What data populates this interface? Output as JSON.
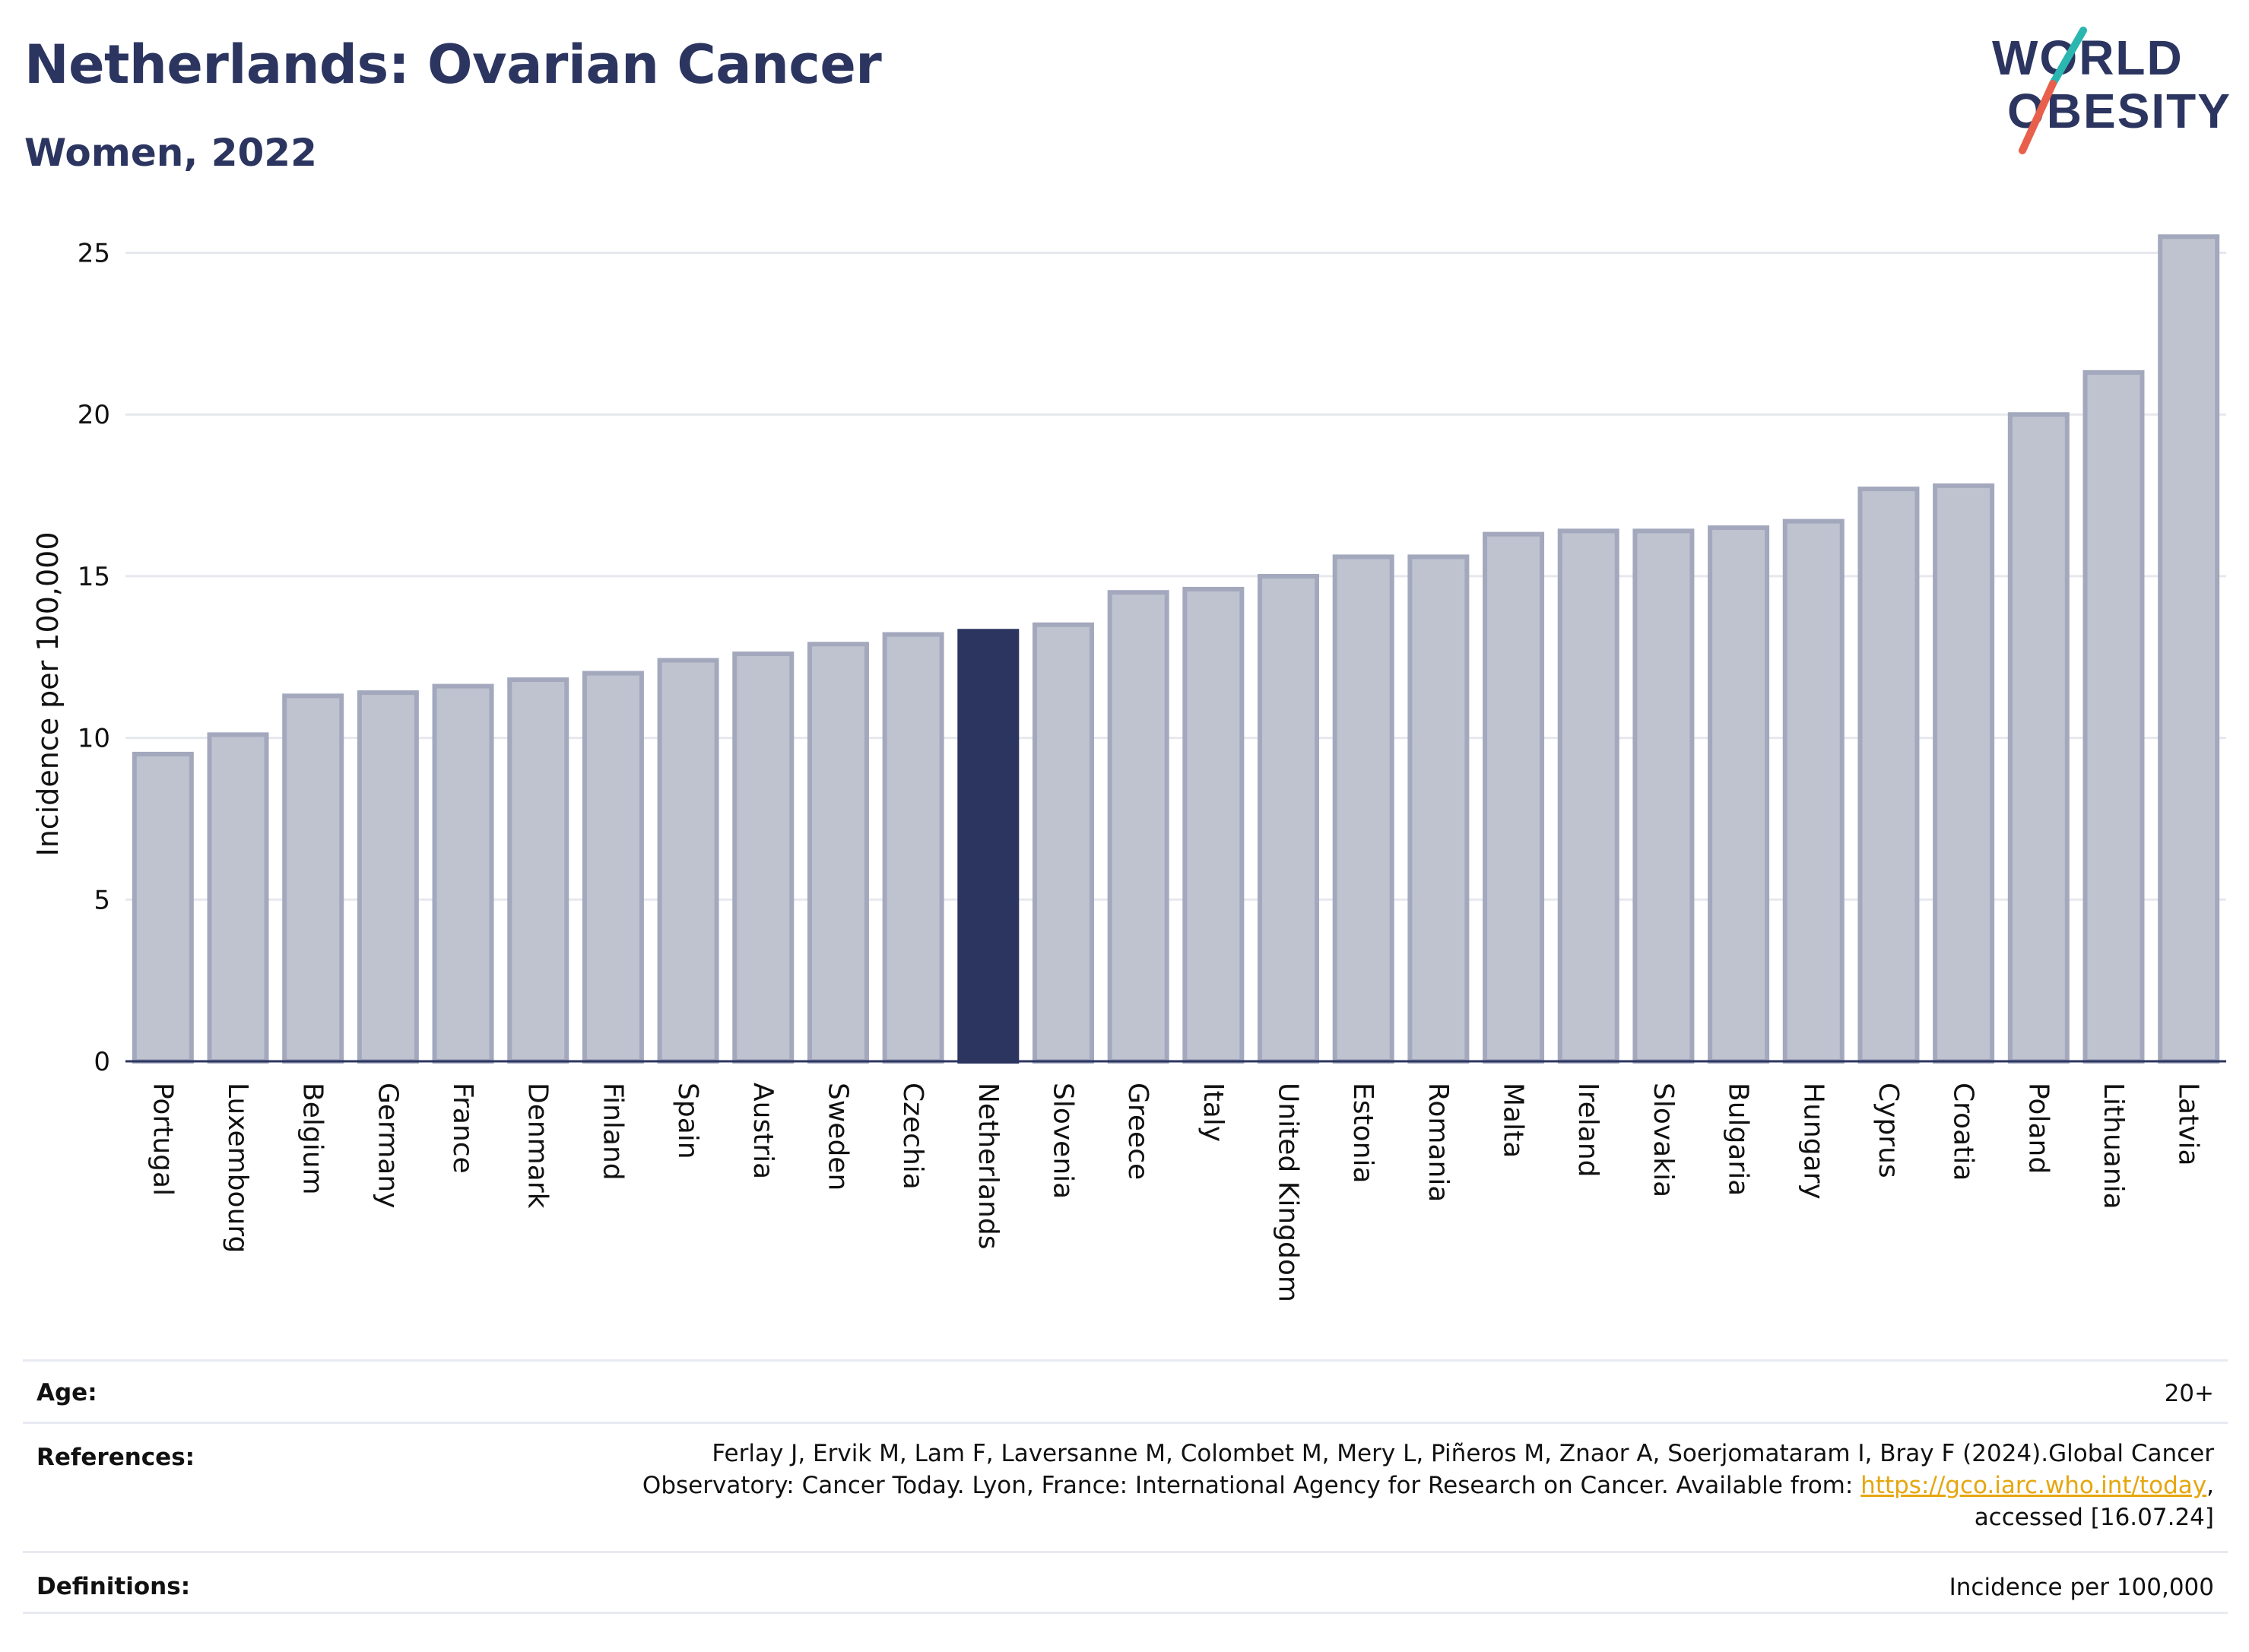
{
  "title": "Netherlands: Ovarian Cancer",
  "subtitle": "Women, 2022",
  "logo": {
    "line1": "WORLD",
    "line2": "OBESITY",
    "colors": {
      "text": "#2b3560",
      "slash_top": "#2bb6b0",
      "slash_bottom": "#e8604c"
    }
  },
  "chart_data": {
    "type": "bar",
    "ylabel": "Incidence per 100,000",
    "ylim": [
      0,
      26
    ],
    "yticks": [
      0,
      5,
      10,
      15,
      20,
      25
    ],
    "grid": true,
    "highlight": "Netherlands",
    "colors": {
      "bar": "#bfc3d0",
      "bar_border": "#a3a8bd",
      "highlight": "#2b3560",
      "grid": "#e6e8ee",
      "axis": "#2b3560"
    },
    "categories": [
      "Portugal",
      "Luxembourg",
      "Belgium",
      "Germany",
      "France",
      "Denmark",
      "Finland",
      "Spain",
      "Austria",
      "Sweden",
      "Czechia",
      "Netherlands",
      "Slovenia",
      "Greece",
      "Italy",
      "United Kingdom",
      "Estonia",
      "Romania",
      "Malta",
      "Ireland",
      "Slovakia",
      "Bulgaria",
      "Hungary",
      "Cyprus",
      "Croatia",
      "Poland",
      "Lithuania",
      "Latvia"
    ],
    "values": [
      9.5,
      10.1,
      11.3,
      11.4,
      11.6,
      11.8,
      12.0,
      12.4,
      12.6,
      12.9,
      13.2,
      13.3,
      13.5,
      14.5,
      14.6,
      15.0,
      15.6,
      15.6,
      16.3,
      16.4,
      16.4,
      16.5,
      16.7,
      17.7,
      17.8,
      20.0,
      21.3,
      25.5
    ]
  },
  "meta": {
    "age_label": "Age:",
    "age_value": "20+",
    "references_label": "References:",
    "references_line1": "Ferlay J, Ervik M, Lam F, Laversanne M, Colombet M, Mery L, Piñeros M, Znaor A, Soerjomataram I, Bray F (2024).Global Cancer",
    "references_line2_prefix": "Observatory: Cancer Today. Lyon, France: International Agency for Research on Cancer. Available from: ",
    "references_link": "https://gco.iarc.who.int/today",
    "references_line2_suffix": ",",
    "references_line3": "accessed [16.07.24]",
    "definitions_label": "Definitions:",
    "definitions_value": "Incidence per 100,000"
  }
}
